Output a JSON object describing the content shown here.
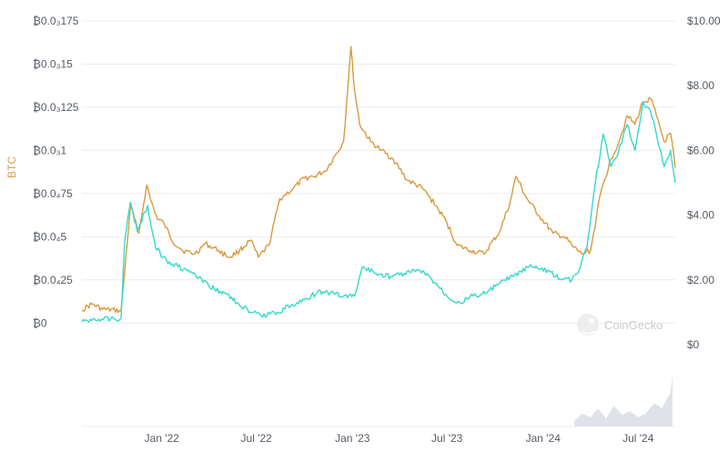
{
  "chart_data": {
    "type": "line",
    "title": "",
    "xlabel": "",
    "left_axis": {
      "label": "BTC",
      "ticks": [
        "₿0",
        "₿0.0₄25",
        "₿0.0₄5",
        "₿0.0₄75",
        "₿0.0₃1",
        "₿0.0₃125",
        "₿0.0₃15",
        "₿0.0₃175"
      ],
      "tick_values": [
        0,
        2.5e-05,
        5e-05,
        7.5e-05,
        0.0001,
        0.000125,
        0.00015,
        0.000175
      ],
      "ylim": [
        -1.25e-05,
        0.000175
      ]
    },
    "right_axis": {
      "label": "",
      "ticks": [
        "$0",
        "$2.00",
        "$4.00",
        "$6.00",
        "$8.00",
        "$10.00"
      ],
      "tick_values": [
        0,
        2,
        4,
        6,
        8,
        10
      ],
      "ylim": [
        0,
        10
      ]
    },
    "x_axis": {
      "ticks": [
        "Jan '22",
        "Jul '22",
        "Jan '23",
        "Jul '23",
        "Jan '24",
        "Jul '24"
      ],
      "tick_dates": [
        "2022-01-01",
        "2022-07-01",
        "2023-01-01",
        "2023-07-01",
        "2024-01-01",
        "2024-07-01"
      ],
      "range": [
        "2021-08-01",
        "2024-09-10"
      ]
    },
    "grid": true,
    "series": [
      {
        "color": "#d89a3e",
        "axis": "left",
        "x": [
          "2021-08-01",
          "2021-08-20",
          "2021-09-10",
          "2021-10-15",
          "2021-10-22",
          "2021-11-02",
          "2021-11-18",
          "2021-12-03",
          "2021-12-10",
          "2021-12-24",
          "2022-01-05",
          "2022-01-20",
          "2022-02-10",
          "2022-03-05",
          "2022-03-25",
          "2022-04-20",
          "2022-05-10",
          "2022-05-30",
          "2022-06-20",
          "2022-07-05",
          "2022-07-25",
          "2022-08-15",
          "2022-09-10",
          "2022-10-01",
          "2022-10-20",
          "2022-11-10",
          "2022-12-01",
          "2022-12-15",
          "2022-12-29",
          "2023-01-05",
          "2023-01-15",
          "2023-02-05",
          "2023-02-25",
          "2023-03-20",
          "2023-04-15",
          "2023-05-15",
          "2023-06-10",
          "2023-07-01",
          "2023-07-20",
          "2023-08-15",
          "2023-09-10",
          "2023-10-10",
          "2023-10-30",
          "2023-11-10",
          "2023-12-01",
          "2023-12-25",
          "2024-01-20",
          "2024-02-10",
          "2024-02-28",
          "2024-03-15",
          "2024-04-01",
          "2024-04-20",
          "2024-05-10",
          "2024-05-25",
          "2024-06-10",
          "2024-06-25",
          "2024-07-10",
          "2024-07-25",
          "2024-08-05",
          "2024-08-20",
          "2024-09-01",
          "2024-09-10"
        ],
        "values": [
          7.5e-06,
          1.1e-05,
          8e-06,
          7e-06,
          3e-05,
          6.8e-05,
          5.2e-05,
          8e-05,
          7.2e-05,
          6e-05,
          5.8e-05,
          4.8e-05,
          4.2e-05,
          4e-05,
          4.6e-05,
          4.2e-05,
          3.8e-05,
          4.2e-05,
          4.8e-05,
          3.8e-05,
          4.5e-05,
          7.2e-05,
          7.8e-05,
          8.4e-05,
          8.5e-05,
          8.8e-05,
          9.8e-05,
          0.000105,
          0.00016,
          0.000135,
          0.000115,
          0.000105,
          0.0001,
          9.5e-05,
          8.3e-05,
          7.8e-05,
          6.8e-05,
          5.8e-05,
          4.5e-05,
          4.2e-05,
          4e-05,
          5.3e-05,
          7e-05,
          8.5e-05,
          7.2e-05,
          6.2e-05,
          5.2e-05,
          5e-05,
          4.4e-05,
          4e-05,
          4.2e-05,
          7.5e-05,
          9.5e-05,
          0.000105,
          0.00012,
          0.000115,
          0.000128,
          0.00013,
          0.00012,
          0.000105,
          0.00011,
          9e-05
        ]
      },
      {
        "color": "#35d9cc",
        "axis": "right",
        "x": [
          "2021-08-01",
          "2021-08-25",
          "2021-09-25",
          "2021-10-15",
          "2021-10-22",
          "2021-11-02",
          "2021-11-15",
          "2021-12-05",
          "2021-12-20",
          "2022-01-10",
          "2022-02-01",
          "2022-03-01",
          "2022-04-01",
          "2022-05-01",
          "2022-05-25",
          "2022-06-20",
          "2022-07-10",
          "2022-08-10",
          "2022-09-05",
          "2022-10-01",
          "2022-10-25",
          "2022-11-20",
          "2022-12-15",
          "2023-01-05",
          "2023-01-20",
          "2023-02-15",
          "2023-03-15",
          "2023-04-10",
          "2023-05-10",
          "2023-06-10",
          "2023-07-01",
          "2023-07-25",
          "2023-08-20",
          "2023-09-15",
          "2023-10-10",
          "2023-11-05",
          "2023-12-05",
          "2024-01-10",
          "2024-02-05",
          "2024-02-25",
          "2024-03-10",
          "2024-03-25",
          "2024-04-10",
          "2024-04-25",
          "2024-05-10",
          "2024-05-25",
          "2024-06-10",
          "2024-06-25",
          "2024-07-10",
          "2024-07-25",
          "2024-08-05",
          "2024-08-20",
          "2024-09-01",
          "2024-09-10"
        ],
        "values": [
          0.7,
          0.8,
          0.8,
          0.8,
          3.2,
          4.4,
          3.5,
          4.3,
          3.0,
          2.6,
          2.4,
          2.2,
          1.8,
          1.6,
          1.3,
          1.0,
          0.9,
          1.0,
          1.2,
          1.4,
          1.6,
          1.6,
          1.5,
          1.5,
          2.4,
          2.2,
          2.1,
          2.2,
          2.3,
          1.9,
          1.5,
          1.3,
          1.5,
          1.6,
          1.9,
          2.1,
          2.4,
          2.3,
          2.0,
          2.0,
          2.3,
          3.0,
          5.0,
          6.5,
          5.5,
          6.0,
          6.8,
          6.0,
          7.5,
          7.2,
          6.5,
          5.5,
          6.0,
          5.0
        ]
      },
      {
        "color": "#dfe3e8",
        "axis": "volume",
        "x": [
          "2024-03-01",
          "2024-03-15",
          "2024-04-01",
          "2024-04-15",
          "2024-05-01",
          "2024-05-15",
          "2024-06-01",
          "2024-06-15",
          "2024-07-01",
          "2024-07-15",
          "2024-08-01",
          "2024-08-15",
          "2024-09-01",
          "2024-09-05"
        ],
        "values": [
          0.1,
          0.25,
          0.18,
          0.35,
          0.15,
          0.4,
          0.22,
          0.3,
          0.18,
          0.25,
          0.45,
          0.35,
          0.65,
          1.0
        ]
      }
    ]
  },
  "watermark": {
    "text": "CoinGecko",
    "icon": "gecko-logo-icon"
  }
}
